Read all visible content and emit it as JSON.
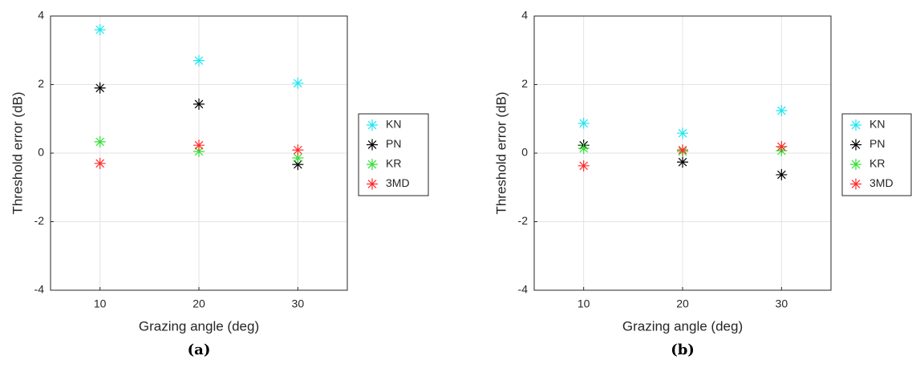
{
  "chart_data": [
    {
      "type": "scatter",
      "caption": "(a)",
      "xlabel": "Grazing angle (deg)",
      "ylabel": "Threshold error (dB)",
      "x": [
        10,
        20,
        30
      ],
      "xlim": [
        5,
        35
      ],
      "xticks": [
        10,
        20,
        30
      ],
      "ylim": [
        -4,
        4
      ],
      "yticks": [
        -4,
        -2,
        0,
        2,
        4
      ],
      "grid": true,
      "series": [
        {
          "name": "KN",
          "color": "#1ee6f0",
          "values": [
            3.6,
            2.7,
            2.04
          ]
        },
        {
          "name": "PN",
          "color": "#000000",
          "values": [
            1.9,
            1.43,
            -0.33
          ]
        },
        {
          "name": "KR",
          "color": "#33e033",
          "values": [
            0.33,
            0.05,
            -0.14
          ]
        },
        {
          "name": "3MD",
          "color": "#ff2a2a",
          "values": [
            -0.3,
            0.23,
            0.09
          ]
        }
      ]
    },
    {
      "type": "scatter",
      "caption": "(b)",
      "xlabel": "Grazing angle (deg)",
      "ylabel": "Threshold error (dB)",
      "x": [
        10,
        20,
        30
      ],
      "xlim": [
        5,
        35
      ],
      "xticks": [
        10,
        20,
        30
      ],
      "ylim": [
        -4,
        4
      ],
      "yticks": [
        -4,
        -2,
        0,
        2,
        4
      ],
      "grid": true,
      "series": [
        {
          "name": "KN",
          "color": "#1ee6f0",
          "values": [
            0.87,
            0.58,
            1.24
          ]
        },
        {
          "name": "PN",
          "color": "#000000",
          "values": [
            0.23,
            -0.26,
            -0.63
          ]
        },
        {
          "name": "KR",
          "color": "#33e033",
          "values": [
            0.14,
            0.05,
            0.07
          ]
        },
        {
          "name": "3MD",
          "color": "#ff2a2a",
          "values": [
            -0.37,
            0.09,
            0.19
          ]
        }
      ]
    }
  ]
}
